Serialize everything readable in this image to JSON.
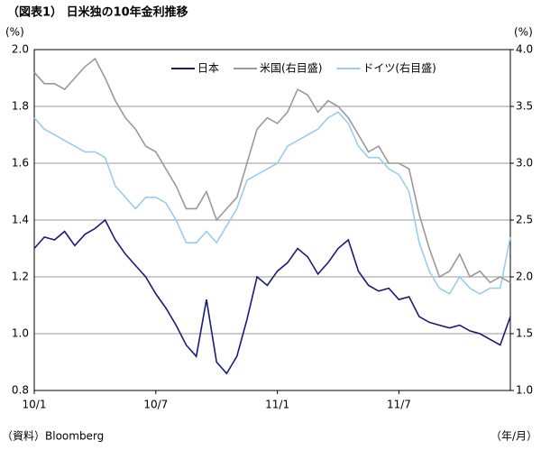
{
  "chart_data": {
    "type": "line",
    "title": "（図表1） 日米独の10年金利推移",
    "y_label": "(%)",
    "y2_label": "(%)",
    "source": "（資料）Bloomberg",
    "x_label": "（年/月）",
    "categories": [
      "10/1",
      null,
      null,
      null,
      null,
      null,
      null,
      null,
      null,
      null,
      null,
      null,
      "10/7",
      null,
      null,
      null,
      null,
      null,
      null,
      null,
      null,
      null,
      null,
      null,
      "11/1",
      null,
      null,
      null,
      null,
      null,
      null,
      null,
      null,
      null,
      null,
      null,
      "11/7",
      null,
      null,
      null,
      null,
      null,
      null,
      null,
      null,
      null,
      null,
      null
    ],
    "series": [
      {
        "name": "日本",
        "color": "#1a1a78",
        "axis": "y",
        "values": [
          1.3,
          1.34,
          1.33,
          1.36,
          1.31,
          1.35,
          1.37,
          1.4,
          1.33,
          1.28,
          1.24,
          1.2,
          1.14,
          1.09,
          1.03,
          0.96,
          0.92,
          1.12,
          0.9,
          0.86,
          0.92,
          1.05,
          1.2,
          1.17,
          1.22,
          1.25,
          1.3,
          1.27,
          1.21,
          1.25,
          1.3,
          1.33,
          1.22,
          1.17,
          1.15,
          1.16,
          1.12,
          1.13,
          1.06,
          1.04,
          1.03,
          1.02,
          1.03,
          1.01,
          1.0,
          0.98,
          0.96,
          1.06
        ]
      },
      {
        "name": "米国(右目盛)",
        "color": "#999999",
        "axis": "y2",
        "values": [
          3.8,
          3.7,
          3.7,
          3.65,
          3.75,
          3.85,
          3.92,
          3.75,
          3.55,
          3.4,
          3.3,
          3.15,
          3.1,
          2.95,
          2.8,
          2.6,
          2.6,
          2.75,
          2.5,
          2.6,
          2.7,
          3.0,
          3.3,
          3.4,
          3.35,
          3.45,
          3.65,
          3.6,
          3.45,
          3.55,
          3.5,
          3.4,
          3.25,
          3.1,
          3.15,
          3.0,
          3.0,
          2.95,
          2.55,
          2.25,
          2.0,
          2.05,
          2.2,
          2.0,
          2.05,
          1.95,
          2.0,
          1.95
        ]
      },
      {
        "name": "ドイツ(右目盛)",
        "color": "#99ccf2",
        "axis": "y2",
        "values": [
          3.4,
          3.3,
          3.25,
          3.2,
          3.15,
          3.1,
          3.1,
          3.05,
          2.8,
          2.7,
          2.6,
          2.7,
          2.7,
          2.65,
          2.5,
          2.3,
          2.3,
          2.4,
          2.3,
          2.45,
          2.6,
          2.85,
          2.9,
          2.95,
          3.0,
          3.15,
          3.2,
          3.25,
          3.3,
          3.4,
          3.45,
          3.35,
          3.15,
          3.05,
          3.05,
          2.95,
          2.9,
          2.75,
          2.3,
          2.05,
          1.9,
          1.85,
          2.0,
          1.9,
          1.85,
          1.9,
          1.9,
          2.35
        ]
      }
    ],
    "ylim": [
      0.8,
      2.0
    ],
    "yticks": [
      0.8,
      {
        "value": 1,
        "label": "1.0"
      },
      1.2,
      1.4,
      1.6,
      1.8,
      {
        "value": 2,
        "label": "2.0"
      }
    ],
    "y2lim": [
      1,
      4
    ],
    "y2ticks": [
      {
        "value": 1,
        "label": "1.0"
      },
      1.5,
      {
        "value": 2,
        "label": "2.0"
      },
      2.5,
      {
        "value": 3,
        "label": "3.0"
      },
      3.5,
      {
        "value": 4,
        "label": "4.0"
      }
    ],
    "grid": true,
    "legend": "top"
  }
}
